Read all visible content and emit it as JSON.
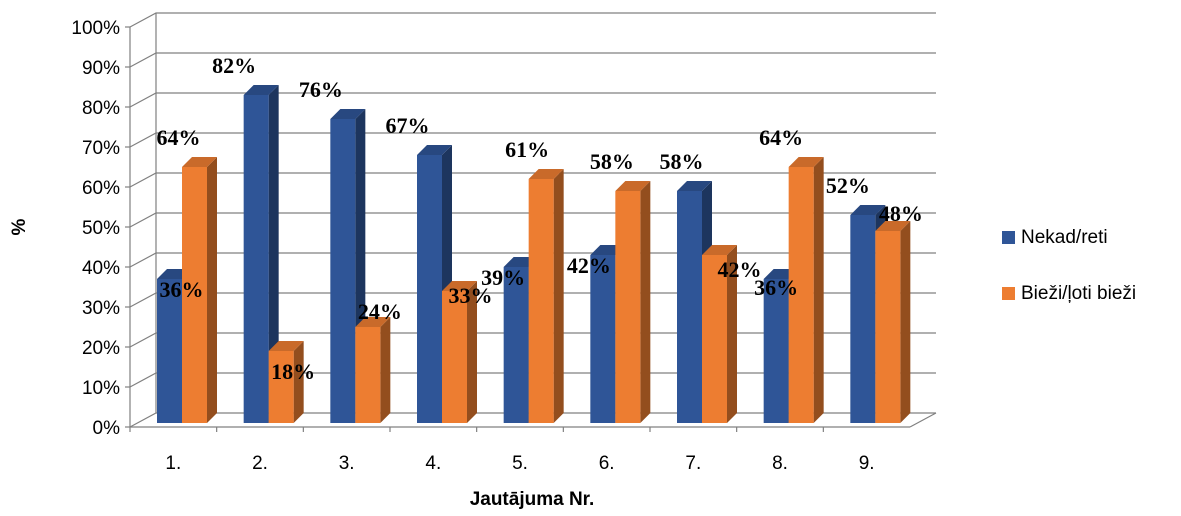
{
  "chart_data": {
    "type": "bar",
    "style": "3d-clustered-column",
    "categories": [
      "1.",
      "2.",
      "3.",
      "4.",
      "5.",
      "6.",
      "7.",
      "8.",
      "9."
    ],
    "series": [
      {
        "name": "Nekad/reti",
        "color": "#2F5597",
        "values": [
          36,
          82,
          76,
          67,
          39,
          42,
          58,
          36,
          52
        ],
        "labels": [
          "36%",
          "82%",
          "76%",
          "67%",
          "39%",
          "42%",
          "58%",
          "36%",
          "52%"
        ]
      },
      {
        "name": "Bieži/ļoti bieži",
        "color": "#ED7D31",
        "values": [
          64,
          18,
          24,
          33,
          61,
          58,
          42,
          64,
          48
        ],
        "labels": [
          "64%",
          "18%",
          "24%",
          "33%",
          "61%",
          "58%",
          "42%",
          "64%",
          "48%"
        ]
      }
    ],
    "ylabel": "%",
    "xlabel": "Jautājuma Nr.",
    "ylim": [
      0,
      100
    ],
    "yticks": [
      "0%",
      "10%",
      "20%",
      "30%",
      "40%",
      "50%",
      "60%",
      "70%",
      "80%",
      "90%",
      "100%"
    ],
    "grid": true,
    "legend": "right"
  }
}
